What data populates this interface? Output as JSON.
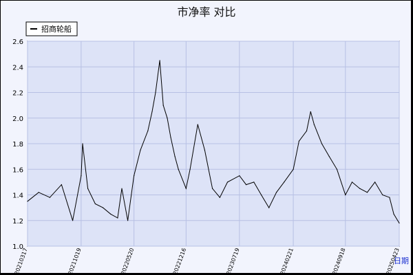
{
  "chart_data": {
    "type": "line",
    "title": "市净率  对比",
    "xlabel": "日期",
    "ylabel": "",
    "ylim": [
      1.0,
      2.6
    ],
    "y_ticks": [
      1.0,
      1.2,
      1.4,
      1.6,
      1.8,
      2.0,
      2.2,
      2.4,
      2.6
    ],
    "x_ticks": [
      "20210317",
      "20211019",
      "20220520",
      "20221216",
      "20230719",
      "20240221",
      "20240918",
      "20250423"
    ],
    "grid": true,
    "legend_position": "top-left",
    "series": [
      {
        "name": "招商轮船",
        "color": "#000000",
        "x": [
          "20210317",
          "20210501",
          "20210615",
          "20210801",
          "20210915",
          "20211019",
          "20211025",
          "20211115",
          "20211215",
          "20220115",
          "20220215",
          "20220315",
          "20220401",
          "20220425",
          "20220520",
          "20220615",
          "20220715",
          "20220801",
          "20220815",
          "20220901",
          "20220915",
          "20221001",
          "20221015",
          "20221101",
          "20221115",
          "20221216",
          "20230101",
          "20230201",
          "20230301",
          "20230401",
          "20230501",
          "20230601",
          "20230719",
          "20230815",
          "20230915",
          "20231015",
          "20231115",
          "20231215",
          "20240115",
          "20240221",
          "20240315",
          "20240415",
          "20240501",
          "20240515",
          "20240615",
          "20240715",
          "20240815",
          "20240918",
          "20241015",
          "20241115",
          "20241215",
          "20250115",
          "20250215",
          "20250315",
          "20250401",
          "20250423"
        ],
        "values": [
          1.35,
          1.42,
          1.38,
          1.48,
          1.2,
          1.55,
          1.8,
          1.45,
          1.33,
          1.3,
          1.25,
          1.22,
          1.45,
          1.2,
          1.55,
          1.75,
          1.9,
          2.05,
          2.2,
          2.45,
          2.1,
          2.0,
          1.85,
          1.7,
          1.6,
          1.45,
          1.6,
          1.95,
          1.75,
          1.45,
          1.38,
          1.5,
          1.55,
          1.48,
          1.5,
          1.4,
          1.3,
          1.42,
          1.5,
          1.6,
          1.82,
          1.9,
          2.05,
          1.95,
          1.8,
          1.7,
          1.6,
          1.4,
          1.5,
          1.45,
          1.42,
          1.5,
          1.4,
          1.38,
          1.25,
          1.18
        ]
      }
    ]
  }
}
